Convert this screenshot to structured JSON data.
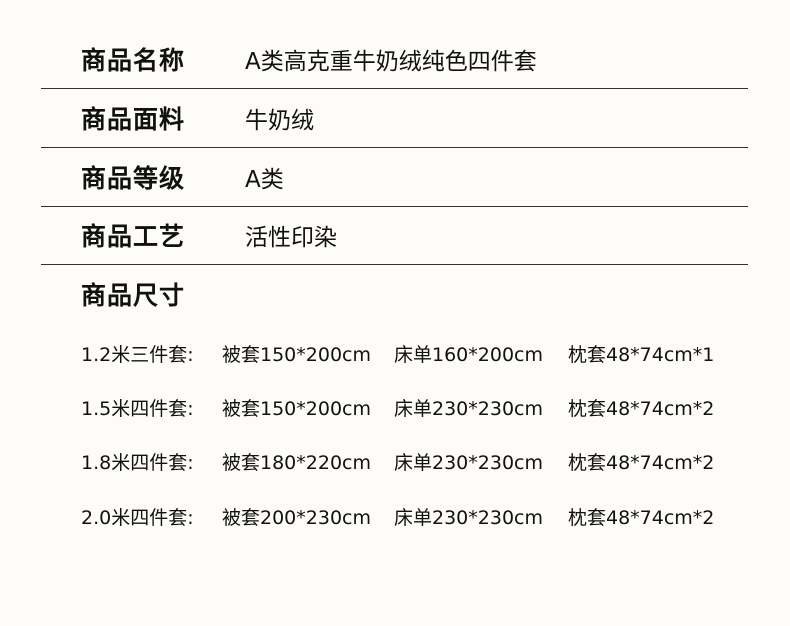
{
  "specs": [
    {
      "label": "商品名称",
      "value": "A类高克重牛奶绒纯色四件套"
    },
    {
      "label": "商品面料",
      "value": "牛奶绒"
    },
    {
      "label": "商品等级",
      "value": "A类"
    },
    {
      "label": "商品工艺",
      "value": "活性印染"
    }
  ],
  "sizes": {
    "label": "商品尺寸",
    "rows": [
      {
        "set": "1.2米三件套:",
        "duvet": "被套150*200cm",
        "sheet": "床单160*200cm",
        "pillow": "枕套48*74cm*1"
      },
      {
        "set": "1.5米四件套:",
        "duvet": "被套150*200cm",
        "sheet": "床单230*230cm",
        "pillow": "枕套48*74cm*2"
      },
      {
        "set": "1.8米四件套:",
        "duvet": "被套180*220cm",
        "sheet": "床单230*230cm",
        "pillow": "枕套48*74cm*2"
      },
      {
        "set": "2.0米四件套:",
        "duvet": "被套200*230cm",
        "sheet": "床单230*230cm",
        "pillow": "枕套48*74cm*2"
      }
    ]
  }
}
